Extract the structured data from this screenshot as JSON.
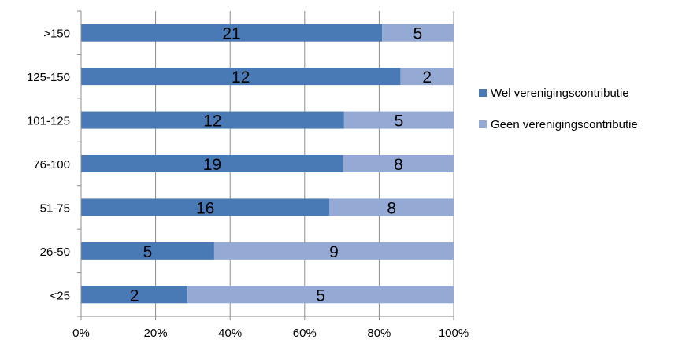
{
  "chart_data": {
    "type": "bar",
    "orientation": "horizontal",
    "stacking": "percent",
    "title": "",
    "xlabel": "",
    "ylabel": "",
    "xlim": [
      0,
      100
    ],
    "x_tick_labels": [
      "0%",
      "20%",
      "40%",
      "60%",
      "80%",
      "100%"
    ],
    "categories": [
      ">150",
      "125-150",
      "101-125",
      "76-100",
      "51-75",
      "26-50",
      "<25"
    ],
    "series": [
      {
        "name": "Wel verenigingscontributie",
        "color": "#4a7ab5",
        "values": [
          21,
          12,
          12,
          19,
          16,
          5,
          2
        ]
      },
      {
        "name": "Geen verenigingscontributie",
        "color": "#94a9d3",
        "values": [
          5,
          2,
          5,
          8,
          8,
          9,
          5
        ]
      }
    ],
    "grid": "vertical",
    "legend_position": "right"
  }
}
